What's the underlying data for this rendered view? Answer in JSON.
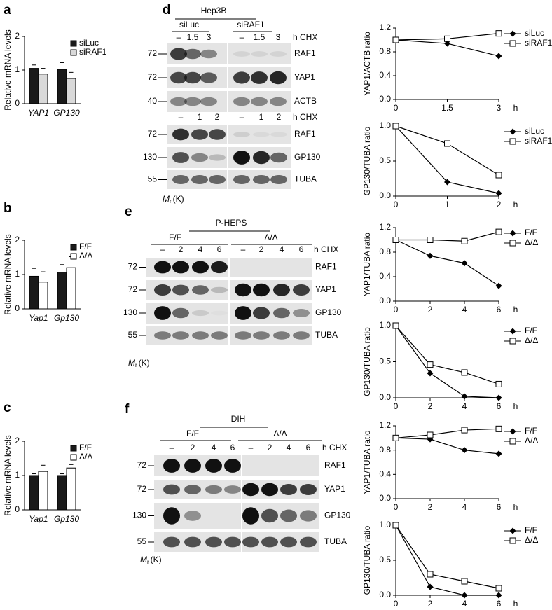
{
  "panel_letters": [
    "a",
    "b",
    "c",
    "d",
    "e",
    "f"
  ],
  "chart_data": [
    {
      "type": "bar",
      "y_label": "Relative mRNA levels",
      "categories": [
        "YAP1",
        "GP130"
      ],
      "ylim": [
        0,
        2
      ],
      "yticks": [
        0,
        1,
        2
      ],
      "legend": "upper right",
      "series": [
        {
          "name": "siLuc",
          "color": "#1a1a1a",
          "values": [
            1.05,
            1.02
          ],
          "errors": [
            0.1,
            0.2
          ]
        },
        {
          "name": "siRAF1",
          "color": "#d9d9d9",
          "values": [
            0.88,
            0.75
          ],
          "errors": [
            0.17,
            0.18
          ]
        }
      ]
    },
    {
      "type": "bar",
      "y_label": "Relative mRNA levels",
      "categories": [
        "Yap1",
        "Gp130"
      ],
      "ylim": [
        0,
        2
      ],
      "yticks": [
        0,
        1,
        2
      ],
      "legend": "upper right",
      "series": [
        {
          "name": "F/F",
          "color": "#1a1a1a",
          "values": [
            0.95,
            1.07
          ],
          "errors": [
            0.23,
            0.22
          ]
        },
        {
          "name": "Δ/Δ",
          "color": "#ffffff",
          "values": [
            0.78,
            1.2
          ],
          "errors": [
            0.3,
            0.32
          ]
        }
      ]
    },
    {
      "type": "bar",
      "y_label": "Relative mRNA levels",
      "categories": [
        "Yap1",
        "Gp130"
      ],
      "ylim": [
        0,
        2
      ],
      "yticks": [
        0,
        1,
        2
      ],
      "legend": "upper right",
      "series": [
        {
          "name": "F/F",
          "color": "#1a1a1a",
          "values": [
            1.0,
            1.0
          ],
          "errors": [
            0.05,
            0.05
          ]
        },
        {
          "name": "Δ/Δ",
          "color": "#ffffff",
          "values": [
            1.12,
            1.22
          ],
          "errors": [
            0.18,
            0.1
          ]
        }
      ]
    },
    {
      "type": "line",
      "y_label": "YAP1/ACTB ratio",
      "x_label": "h",
      "x": [
        0,
        1.5,
        3
      ],
      "xlim": [
        0,
        3
      ],
      "xticks": [
        0,
        1.5,
        3
      ],
      "ylim": [
        0,
        1.2
      ],
      "yticks": [
        {
          "value": 0,
          "label": "0.0"
        },
        0.4,
        0.8,
        1.2
      ],
      "legend": "right",
      "series": [
        {
          "name": "siLuc",
          "color": "#000000",
          "values": [
            1.0,
            0.94,
            0.73
          ]
        },
        {
          "name": "siRAF1",
          "color": "#000000",
          "values": [
            1.0,
            1.02,
            1.11
          ]
        }
      ]
    },
    {
      "type": "line",
      "y_label": "GP130/TUBA ratio",
      "x_label": "h",
      "x": [
        0,
        1,
        2
      ],
      "xlim": [
        0,
        2
      ],
      "xticks": [
        0,
        1,
        2
      ],
      "ylim": [
        0,
        1
      ],
      "yticks": [
        {
          "value": 0,
          "label": "0.0"
        },
        0.5,
        {
          "value": 1,
          "label": "1.0"
        }
      ],
      "legend": "right",
      "series": [
        {
          "name": "siLuc",
          "color": "#000000",
          "values": [
            1.0,
            0.2,
            0.04
          ]
        },
        {
          "name": "siRAF1",
          "color": "#000000",
          "values": [
            1.0,
            0.75,
            0.3
          ]
        }
      ]
    },
    {
      "type": "line",
      "y_label": "YAP1/TUBA ratio",
      "x_label": "h",
      "x": [
        0,
        2,
        4,
        6
      ],
      "xlim": [
        0,
        6
      ],
      "xticks": [
        0,
        2,
        4,
        6
      ],
      "ylim": [
        0,
        1.2
      ],
      "yticks": [
        {
          "value": 0,
          "label": "0.0"
        },
        0.4,
        0.8,
        1.2
      ],
      "legend": "right",
      "series": [
        {
          "name": "F/F",
          "color": "#000000",
          "values": [
            1.0,
            0.74,
            0.62,
            0.25
          ]
        },
        {
          "name": "Δ/Δ",
          "color": "#000000",
          "values": [
            1.0,
            1.0,
            0.98,
            1.13
          ]
        }
      ]
    },
    {
      "type": "line",
      "y_label": "GP130/TUBA ratio",
      "x_label": "h",
      "x": [
        0,
        2,
        4,
        6
      ],
      "xlim": [
        0,
        6
      ],
      "xticks": [
        0,
        2,
        4,
        6
      ],
      "ylim": [
        0,
        1
      ],
      "yticks": [
        {
          "value": 0,
          "label": "0.0"
        },
        0.5,
        {
          "value": 1,
          "label": "1.0"
        }
      ],
      "legend": "right",
      "series": [
        {
          "name": "F/F",
          "color": "#000000",
          "values": [
            1.0,
            0.34,
            0.02,
            0.0
          ]
        },
        {
          "name": "Δ/Δ",
          "color": "#000000",
          "values": [
            1.0,
            0.46,
            0.35,
            0.19
          ]
        }
      ]
    },
    {
      "type": "line",
      "y_label": "YAP1/TUBA ratio",
      "x_label": "h",
      "x": [
        0,
        2,
        4,
        6
      ],
      "xlim": [
        0,
        6
      ],
      "xticks": [
        0,
        2,
        4,
        6
      ],
      "ylim": [
        0,
        1.2
      ],
      "yticks": [
        {
          "value": 0,
          "label": "0.0"
        },
        0.4,
        0.8,
        1.2
      ],
      "legend": "right",
      "series": [
        {
          "name": "F/F",
          "color": "#000000",
          "values": [
            1.0,
            0.98,
            0.8,
            0.74
          ]
        },
        {
          "name": "Δ/Δ",
          "color": "#000000",
          "values": [
            1.0,
            1.05,
            1.13,
            1.15
          ]
        }
      ]
    },
    {
      "type": "line",
      "y_label": "GP130/TUBA ratio",
      "x_label": "h",
      "x": [
        0,
        2,
        4,
        6
      ],
      "xlim": [
        0,
        6
      ],
      "xticks": [
        0,
        2,
        4,
        6
      ],
      "ylim": [
        0,
        1
      ],
      "yticks": [
        {
          "value": 0,
          "label": "0.0"
        },
        0.5,
        {
          "value": 1,
          "label": "1.0"
        }
      ],
      "legend": "right",
      "series": [
        {
          "name": "F/F",
          "color": "#000000",
          "values": [
            1.0,
            0.12,
            0.0,
            0.0
          ]
        },
        {
          "name": "Δ/Δ",
          "color": "#000000",
          "values": [
            1.0,
            0.3,
            0.2,
            0.1
          ]
        }
      ]
    }
  ],
  "blots": [
    {
      "header": "Hep3B",
      "groups": [
        "siLuc",
        "siRAF1"
      ],
      "mr": [
        "M",
        "r",
        "(K)"
      ],
      "sections": [
        {
          "lanes": [
            "–",
            "1.5",
            "3",
            "–",
            "1.5",
            "3"
          ],
          "unit": "h CHX",
          "rows": [
            {
              "label": "RAF1",
              "mw": "72"
            },
            {
              "label": "YAP1",
              "mw": "72"
            },
            {
              "label": "ACTB",
              "mw": "40"
            }
          ]
        },
        {
          "lanes": [
            "–",
            "1",
            "2",
            "–",
            "1",
            "2"
          ],
          "unit": "h CHX",
          "rows": [
            {
              "label": "RAF1",
              "mw": "72"
            },
            {
              "label": "GP130",
              "mw": "130"
            },
            {
              "label": "TUBA",
              "mw": "55"
            }
          ]
        }
      ]
    },
    {
      "header": "P-HEPS",
      "groups": [
        "F/F",
        "Δ/Δ"
      ],
      "mr": [
        "M",
        "r",
        "(K)"
      ],
      "sections": [
        {
          "lanes": [
            "–",
            "2",
            "4",
            "6",
            "–",
            "2",
            "4",
            "6"
          ],
          "unit": "h CHX",
          "rows": [
            {
              "label": "RAF1",
              "mw": "72"
            },
            {
              "label": "YAP1",
              "mw": "72"
            },
            {
              "label": "GP130",
              "mw": "130"
            },
            {
              "label": "TUBA",
              "mw": "55"
            }
          ]
        }
      ]
    },
    {
      "header": "DIH",
      "groups": [
        "F/F",
        "Δ/Δ"
      ],
      "mr": [
        "M",
        "r",
        "(K)"
      ],
      "sections": [
        {
          "lanes": [
            "–",
            "2",
            "4",
            "6",
            "–",
            "2",
            "4",
            "6"
          ],
          "unit": "h CHX",
          "rows": [
            {
              "label": "RAF1",
              "mw": "72"
            },
            {
              "label": "YAP1",
              "mw": "72"
            },
            {
              "label": "GP130",
              "mw": "130"
            },
            {
              "label": "TUBA",
              "mw": "55"
            }
          ]
        }
      ]
    }
  ]
}
